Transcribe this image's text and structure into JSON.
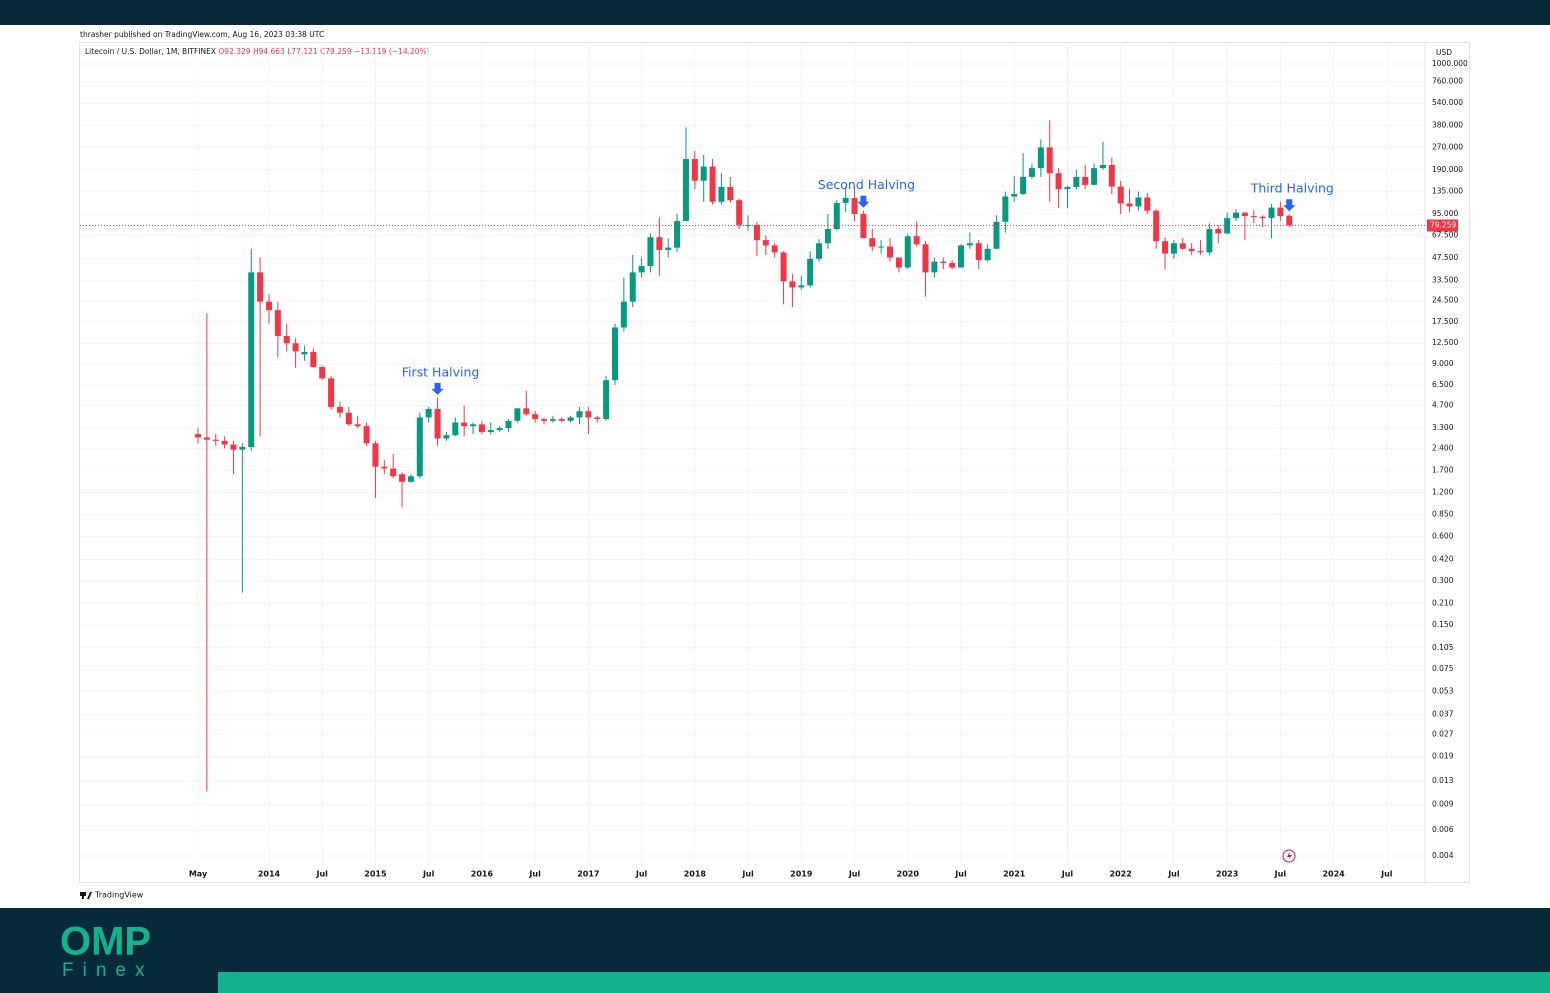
{
  "header": {
    "attribution": "thrasher published on TradingView.com, Aug 16, 2023 03:38 UTC"
  },
  "chart_data": {
    "type": "candlestick",
    "symbol": "Litecoin / U.S. Dollar, 1M, BITFINEX",
    "ohlc_labels": [
      "O92.329",
      "H94.663",
      "L77.121",
      "C79.259"
    ],
    "change_label": "−13.119 (−14.20%)",
    "currency": "USD",
    "last_price_label": "79.259",
    "up_color": "#089981",
    "down_color": "#f23645",
    "annotation_color": "#2962ff",
    "log_scale": true,
    "grid": true,
    "ylim": [
      0.00342,
      1368
    ],
    "yticks": [
      {
        "value": 1000,
        "label": "1000.000"
      },
      {
        "value": 760,
        "label": "760.000"
      },
      {
        "value": 540,
        "label": "540.000"
      },
      {
        "value": 380,
        "label": "380.000"
      },
      {
        "value": 270,
        "label": "270.000"
      },
      {
        "value": 190,
        "label": "190.000"
      },
      {
        "value": 135,
        "label": "135.000"
      },
      {
        "value": 95,
        "label": "95.000"
      },
      {
        "value": 67.5,
        "label": "67.500"
      },
      {
        "value": 47.5,
        "label": "47.500"
      },
      {
        "value": 33.5,
        "label": "33.500"
      },
      {
        "value": 24.5,
        "label": "24.500"
      },
      {
        "value": 17.5,
        "label": "17.500"
      },
      {
        "value": 12.5,
        "label": "12.500"
      },
      {
        "value": 9,
        "label": "9.000"
      },
      {
        "value": 6.5,
        "label": "6.500"
      },
      {
        "value": 4.7,
        "label": "4.700"
      },
      {
        "value": 3.3,
        "label": "3.300"
      },
      {
        "value": 2.4,
        "label": "2.400"
      },
      {
        "value": 1.7,
        "label": "1.700"
      },
      {
        "value": 1.2,
        "label": "1.200"
      },
      {
        "value": 0.85,
        "label": "0.850"
      },
      {
        "value": 0.6,
        "label": "0.600"
      },
      {
        "value": 0.42,
        "label": "0.420"
      },
      {
        "value": 0.3,
        "label": "0.300"
      },
      {
        "value": 0.21,
        "label": "0.210"
      },
      {
        "value": 0.15,
        "label": "0.150"
      },
      {
        "value": 0.105,
        "label": "0.105"
      },
      {
        "value": 0.075,
        "label": "0.075"
      },
      {
        "value": 0.053,
        "label": "0.053"
      },
      {
        "value": 0.037,
        "label": "0.037"
      },
      {
        "value": 0.027,
        "label": "0.027"
      },
      {
        "value": 0.019,
        "label": "0.019"
      },
      {
        "value": 0.013,
        "label": "0.013"
      },
      {
        "value": 0.009,
        "label": "0.009"
      },
      {
        "value": 0.006,
        "label": "0.006"
      },
      {
        "value": 0.004,
        "label": "0.004"
      }
    ],
    "xlim": [
      -13.3,
      138.3
    ],
    "xticks": [
      {
        "value": 0,
        "label": "May"
      },
      {
        "value": 8,
        "label": "2014"
      },
      {
        "value": 14,
        "label": "Jul"
      },
      {
        "value": 20,
        "label": "2015"
      },
      {
        "value": 26,
        "label": "Jul"
      },
      {
        "value": 32,
        "label": "2016"
      },
      {
        "value": 38,
        "label": "Jul"
      },
      {
        "value": 44,
        "label": "2017"
      },
      {
        "value": 50,
        "label": "Jul"
      },
      {
        "value": 56,
        "label": "2018"
      },
      {
        "value": 62,
        "label": "Jul"
      },
      {
        "value": 68,
        "label": "2019"
      },
      {
        "value": 74,
        "label": "Jul"
      },
      {
        "value": 80,
        "label": "2020"
      },
      {
        "value": 86,
        "label": "Jul"
      },
      {
        "value": 92,
        "label": "2021"
      },
      {
        "value": 98,
        "label": "Jul"
      },
      {
        "value": 104,
        "label": "2022"
      },
      {
        "value": 110,
        "label": "Jul"
      },
      {
        "value": 116,
        "label": "2023"
      },
      {
        "value": 122,
        "label": "Jul"
      },
      {
        "value": 128,
        "label": "2024"
      },
      {
        "value": 134,
        "label": "Jul"
      }
    ],
    "candles": [
      [
        3.0,
        3.3,
        2.6,
        2.85
      ],
      [
        2.85,
        20,
        0.011,
        2.75
      ],
      [
        2.75,
        3.0,
        2.5,
        2.7
      ],
      [
        2.7,
        2.9,
        2.4,
        2.55
      ],
      [
        2.55,
        2.7,
        1.6,
        2.35
      ],
      [
        2.35,
        2.6,
        0.25,
        2.45
      ],
      [
        2.45,
        55,
        2.3,
        38
      ],
      [
        38,
        48,
        2.9,
        24
      ],
      [
        24,
        27,
        17,
        21
      ],
      [
        21,
        24,
        10,
        14
      ],
      [
        14,
        17,
        11,
        12.5
      ],
      [
        12.5,
        13.5,
        8.5,
        11
      ],
      [
        10.5,
        12,
        9.5,
        10.9
      ],
      [
        10.9,
        11.5,
        8.5,
        8.6
      ],
      [
        8.6,
        8.8,
        7.0,
        7.2
      ],
      [
        7.2,
        7.5,
        4.4,
        4.6
      ],
      [
        4.6,
        5.0,
        3.9,
        4.2
      ],
      [
        4.2,
        4.6,
        3.4,
        3.5
      ],
      [
        3.5,
        4.0,
        3.3,
        3.4
      ],
      [
        3.4,
        3.6,
        2.5,
        2.6
      ],
      [
        2.6,
        2.7,
        1.1,
        1.8
      ],
      [
        1.8,
        2.0,
        1.6,
        1.75
      ],
      [
        1.75,
        2.2,
        1.5,
        1.55
      ],
      [
        1.6,
        1.65,
        0.95,
        1.42
      ],
      [
        1.42,
        1.6,
        1.4,
        1.55
      ],
      [
        1.55,
        4.2,
        1.5,
        3.9
      ],
      [
        3.9,
        4.6,
        3.6,
        4.45
      ],
      [
        4.45,
        5.3,
        2.5,
        2.8
      ],
      [
        2.8,
        3.1,
        2.7,
        2.95
      ],
      [
        2.95,
        3.9,
        2.9,
        3.6
      ],
      [
        3.6,
        4.7,
        2.9,
        3.4
      ],
      [
        3.4,
        3.6,
        3.0,
        3.5
      ],
      [
        3.5,
        3.7,
        3.0,
        3.1
      ],
      [
        3.1,
        3.6,
        3.0,
        3.2
      ],
      [
        3.2,
        3.4,
        3.1,
        3.3
      ],
      [
        3.3,
        3.8,
        3.1,
        3.7
      ],
      [
        3.7,
        4.5,
        3.6,
        4.5
      ],
      [
        4.5,
        5.9,
        4.0,
        4.1
      ],
      [
        4.1,
        4.3,
        3.6,
        3.8
      ],
      [
        3.8,
        3.9,
        3.5,
        3.7
      ],
      [
        3.7,
        4.0,
        3.6,
        3.8
      ],
      [
        3.8,
        3.9,
        3.6,
        3.7
      ],
      [
        3.7,
        4.0,
        3.6,
        3.9
      ],
      [
        3.9,
        4.6,
        3.5,
        4.3
      ],
      [
        4.3,
        4.6,
        3.0,
        3.9
      ],
      [
        3.9,
        4.0,
        3.6,
        3.8
      ],
      [
        3.8,
        7.5,
        3.7,
        7.0
      ],
      [
        7.0,
        17,
        6.5,
        16
      ],
      [
        16,
        35,
        15,
        24
      ],
      [
        24,
        50,
        22,
        38
      ],
      [
        38,
        48,
        35,
        42
      ],
      [
        42,
        70,
        38,
        66
      ],
      [
        66,
        90,
        36,
        54
      ],
      [
        54,
        65,
        48,
        56
      ],
      [
        56,
        95,
        52,
        85
      ],
      [
        85,
        370,
        85,
        225
      ],
      [
        225,
        255,
        140,
        160
      ],
      [
        160,
        240,
        115,
        200
      ],
      [
        200,
        225,
        110,
        115
      ],
      [
        115,
        180,
        110,
        145
      ],
      [
        145,
        170,
        113,
        118
      ],
      [
        118,
        121,
        75,
        80
      ],
      [
        80,
        93,
        73,
        80
      ],
      [
        80,
        84,
        49,
        63
      ],
      [
        63,
        68,
        50,
        58
      ],
      [
        58,
        60,
        48,
        52
      ],
      [
        52,
        53,
        23,
        33
      ],
      [
        33,
        37,
        22,
        30
      ],
      [
        30,
        36,
        29,
        31
      ],
      [
        31,
        53,
        30,
        47
      ],
      [
        47,
        64,
        45,
        60
      ],
      [
        60,
        95,
        55,
        75
      ],
      [
        75,
        118,
        73,
        113
      ],
      [
        113,
        146,
        98,
        122
      ],
      [
        122,
        146,
        85,
        95
      ],
      [
        95,
        100,
        65,
        65
      ],
      [
        65,
        75,
        53,
        57
      ],
      [
        57,
        63,
        51,
        57
      ],
      [
        57,
        65,
        45,
        48
      ],
      [
        48,
        48,
        38,
        41
      ],
      [
        41,
        70,
        40,
        67
      ],
      [
        67,
        85,
        57,
        59
      ],
      [
        59,
        62,
        26,
        38
      ],
      [
        38,
        48,
        35,
        45
      ],
      [
        45,
        48,
        40,
        44
      ],
      [
        44,
        46,
        40,
        41
      ],
      [
        41,
        59,
        41,
        58
      ],
      [
        58,
        71,
        55,
        60
      ],
      [
        60,
        63,
        40,
        46
      ],
      [
        46,
        59,
        45,
        55
      ],
      [
        55,
        93,
        55,
        84
      ],
      [
        84,
        135,
        71,
        125
      ],
      [
        125,
        172,
        115,
        130
      ],
      [
        130,
        247,
        128,
        170
      ],
      [
        170,
        210,
        165,
        195
      ],
      [
        195,
        307,
        170,
        270
      ],
      [
        270,
        413,
        115,
        180
      ],
      [
        180,
        195,
        105,
        140
      ],
      [
        140,
        148,
        104,
        145
      ],
      [
        145,
        190,
        140,
        170
      ],
      [
        170,
        205,
        140,
        150
      ],
      [
        150,
        210,
        150,
        195
      ],
      [
        195,
        295,
        190,
        205
      ],
      [
        205,
        230,
        130,
        146
      ],
      [
        146,
        160,
        95,
        112
      ],
      [
        112,
        140,
        98,
        107
      ],
      [
        107,
        135,
        100,
        123
      ],
      [
        123,
        132,
        95,
        100
      ],
      [
        100,
        102,
        55,
        62
      ],
      [
        62,
        66,
        40,
        51
      ],
      [
        51,
        63,
        47,
        60
      ],
      [
        60,
        65,
        54,
        55
      ],
      [
        55,
        60,
        50,
        53
      ],
      [
        53,
        63,
        50,
        52
      ],
      [
        52,
        82,
        50,
        75
      ],
      [
        75,
        80,
        60,
        70
      ],
      [
        70,
        97,
        69,
        89
      ],
      [
        89,
        103,
        85,
        97
      ],
      [
        97,
        98,
        63,
        92
      ],
      [
        92,
        101,
        82,
        91
      ],
      [
        91,
        93,
        77,
        89
      ],
      [
        89,
        111,
        65,
        105
      ],
      [
        105,
        115,
        85,
        92
      ],
      [
        92.329,
        94.663,
        77.121,
        79.259
      ]
    ],
    "annotations": [
      "First Halving",
      "Second Halving",
      "Third Halving"
    ]
  },
  "footer": {
    "tradingview": "TradingView",
    "brand": "OMP",
    "brand_sub": "Finex"
  }
}
